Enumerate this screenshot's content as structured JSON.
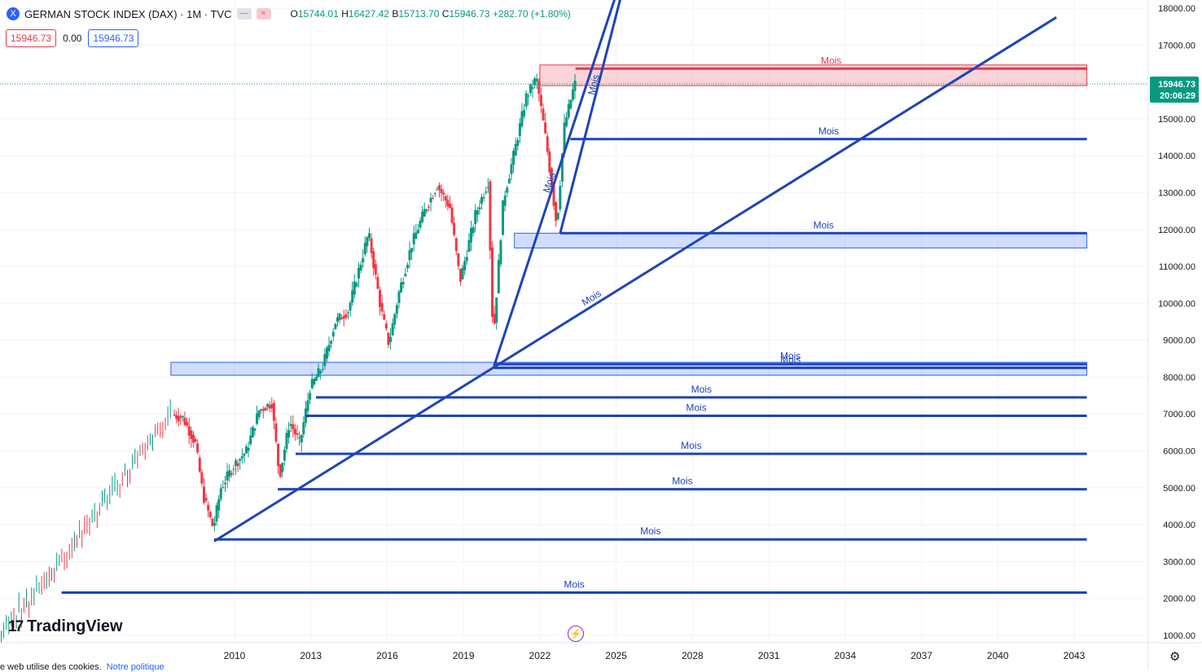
{
  "header": {
    "symbol_icon": "X",
    "title": "GERMAN STOCK INDEX (DAX) · 1M · TVC",
    "o_label": "O",
    "o_value": "15744.01",
    "h_label": "H",
    "h_value": "16427.42",
    "l_label": "B",
    "l_value": "15713.70",
    "c_label": "C",
    "c_value": "15946.73",
    "change": "+282.70 (+1.80%)",
    "pill_g": "—",
    "pill_r": "≈"
  },
  "price_row": {
    "sell": "15946.73",
    "spread": "0.00",
    "buy": "15946.73"
  },
  "last_price": {
    "value": "15946.73",
    "countdown": "20:06:29"
  },
  "branding": {
    "logo_mark": "17",
    "name": "TradingView"
  },
  "cookie": {
    "text": "e web utilise des cookies.",
    "link": "Notre politique"
  },
  "icons": {
    "settings": "gear-icon",
    "bolt": "lightning-icon"
  },
  "chart_data": {
    "type": "candlestick",
    "symbol": "DAX",
    "interval": "1M",
    "y_ticks": [
      "18000.00",
      "17000.00",
      "16000.00",
      "15000.00",
      "14000.00",
      "13000.00",
      "12000.00",
      "11000.00",
      "10000.00",
      "9000.00",
      "8000.00",
      "7000.00",
      "6000.00",
      "5000.00",
      "4000.00",
      "3000.00",
      "2000.00",
      "1000.00"
    ],
    "x_ticks": [
      "2010",
      "2013",
      "2016",
      "2019",
      "2022",
      "2025",
      "2028",
      "2031",
      "2034",
      "2037",
      "2040",
      "2043"
    ],
    "ylim": [
      800,
      18100
    ],
    "price_path": [
      [
        2007.5,
        7000
      ],
      [
        2008.0,
        6900
      ],
      [
        2008.5,
        6200
      ],
      [
        2008.8,
        4800
      ],
      [
        2009.2,
        3900
      ],
      [
        2009.5,
        5000
      ],
      [
        2010.0,
        5600
      ],
      [
        2010.5,
        6000
      ],
      [
        2011.0,
        7100
      ],
      [
        2011.5,
        7300
      ],
      [
        2011.8,
        5300
      ],
      [
        2012.2,
        6800
      ],
      [
        2012.6,
        6200
      ],
      [
        2013.0,
        7700
      ],
      [
        2013.5,
        8300
      ],
      [
        2014.0,
        9500
      ],
      [
        2014.5,
        9800
      ],
      [
        2015.3,
        11900
      ],
      [
        2015.8,
        9800
      ],
      [
        2016.1,
        8900
      ],
      [
        2016.5,
        10300
      ],
      [
        2017.0,
        11600
      ],
      [
        2017.5,
        12500
      ],
      [
        2018.0,
        13200
      ],
      [
        2018.5,
        12600
      ],
      [
        2018.9,
        10600
      ],
      [
        2019.5,
        12400
      ],
      [
        2020.0,
        13300
      ],
      [
        2020.2,
        9000
      ],
      [
        2020.6,
        12800
      ],
      [
        2021.0,
        14000
      ],
      [
        2021.5,
        15600
      ],
      [
        2021.9,
        16100
      ],
      [
        2022.3,
        14300
      ],
      [
        2022.7,
        12100
      ],
      [
        2023.0,
        14800
      ],
      [
        2023.4,
        15946.73
      ]
    ],
    "lines": [
      {
        "label": "Mois",
        "color": "#e53950",
        "start": 2023.4,
        "value": 16360
      },
      {
        "label": "Mois",
        "color": "#1e44b8",
        "start": 2023.2,
        "value": 14450
      },
      {
        "label": "Mois",
        "color": "#1e44b8",
        "start": 2022.8,
        "value": 11900
      },
      {
        "label": "Mois",
        "color": "#1e44b8",
        "start": 2020.2,
        "value": 8350
      },
      {
        "label": "Mois",
        "color": "#1e44b8",
        "start": 2020.2,
        "value": 8250
      },
      {
        "label": "Mois",
        "color": "#1e44b8",
        "start": 2013.2,
        "value": 7450
      },
      {
        "label": "Mois",
        "color": "#1e44b8",
        "start": 2012.8,
        "value": 6950
      },
      {
        "label": "Mois",
        "color": "#1e44b8",
        "start": 2012.4,
        "value": 5920
      },
      {
        "label": "Mois",
        "color": "#1e44b8",
        "start": 2011.7,
        "value": 4960
      },
      {
        "label": "Mois",
        "color": "#1e44b8",
        "start": 2009.2,
        "value": 3600
      },
      {
        "label": "Mois",
        "color": "#1e44b8",
        "start": 2003.2,
        "value": 2160
      }
    ],
    "zones": [
      {
        "color": "#e53950",
        "x1": 2022.0,
        "x2": 2043.5,
        "y1": 15900,
        "y2": 16460
      },
      {
        "color": "#2962ff",
        "x1": 2021.0,
        "x2": 2043.5,
        "y1": 11500,
        "y2": 11900
      },
      {
        "color": "#2962ff",
        "x1": 2007.5,
        "x2": 2043.5,
        "y1": 8050,
        "y2": 8400
      }
    ],
    "trendlines": [
      {
        "label": "Mois",
        "from": [
          2009.2,
          3550
        ],
        "to": [
          2042.3,
          17750
        ]
      },
      {
        "label": "Mois",
        "from": [
          2020.2,
          8300
        ],
        "to": [
          2025.3,
          19000
        ]
      },
      {
        "label": "Mois",
        "from": [
          2022.8,
          11900
        ],
        "to": [
          2026.0,
          20500
        ]
      }
    ]
  }
}
